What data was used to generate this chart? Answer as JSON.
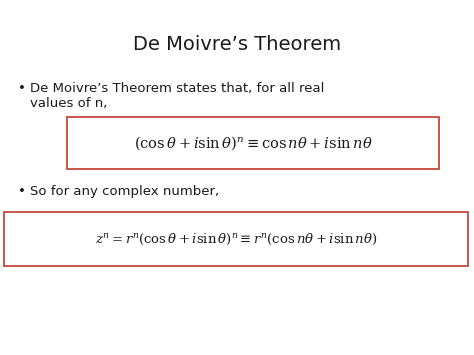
{
  "title": "De Moivre’s Theorem",
  "title_fontsize": 14,
  "bullet1_line1": "De Moivre’s Theorem states that, for all real",
  "bullet1_line2": "values of n,",
  "bullet_fontsize": 9.5,
  "formula1": "$(\\cos\\theta+i\\sin\\theta)^n \\equiv \\cos n\\theta+i\\sin n\\theta$",
  "formula1_fontsize": 10.5,
  "bullet2_text": "So for any complex number,",
  "bullet2_fontsize": 9.5,
  "formula2": "$z^n = r^n(\\cos\\theta+i\\sin\\theta)^n \\equiv r^n(\\cos n\\theta+i\\sin n\\theta)$",
  "formula2_fontsize": 9.5,
  "bg_color": "#ffffff",
  "text_color": "#1a1a1a",
  "box_edge_color": "#c0392b",
  "box_face_color": "#ffffff"
}
